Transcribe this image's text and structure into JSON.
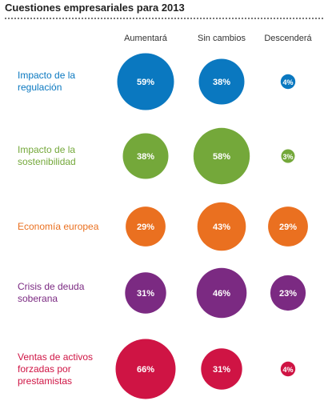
{
  "chart_data": {
    "type": "bubble-matrix",
    "title": "Cuestiones empresariales para 2013",
    "columns": [
      "Aumentará",
      "Sin cambios",
      "Descenderá"
    ],
    "rows": [
      {
        "label": "Impacto de la regulación",
        "label_lines": [
          "Impacto de la",
          "regulación"
        ],
        "color": "#0a78c0",
        "values": [
          59,
          38,
          4
        ],
        "value_labels": [
          "59%",
          "38%",
          "4%"
        ]
      },
      {
        "label": "Impacto de la sostenibilidad",
        "label_lines": [
          "Impacto de la",
          "sostenibilidad"
        ],
        "color": "#74a83a",
        "values": [
          38,
          58,
          3
        ],
        "value_labels": [
          "38%",
          "58%",
          "3%"
        ]
      },
      {
        "label": "Economía europea",
        "label_lines": [
          "Economía europea"
        ],
        "color": "#ea7020",
        "values": [
          29,
          43,
          29
        ],
        "value_labels": [
          "29%",
          "43%",
          "29%"
        ]
      },
      {
        "label": "Crisis de deuda soberana",
        "label_lines": [
          "Crisis de deuda",
          "soberana"
        ],
        "color": "#7b2a82",
        "values": [
          31,
          46,
          23
        ],
        "value_labels": [
          "31%",
          "46%",
          "23%"
        ]
      },
      {
        "label": "Ventas de activos forzadas por prestamistas",
        "label_lines": [
          "Ventas de activos",
          "forzadas por",
          "prestamistas"
        ],
        "color": "#cf1444",
        "values": [
          66,
          31,
          4
        ],
        "value_labels": [
          "66%",
          "31%",
          "4%"
        ]
      }
    ]
  }
}
